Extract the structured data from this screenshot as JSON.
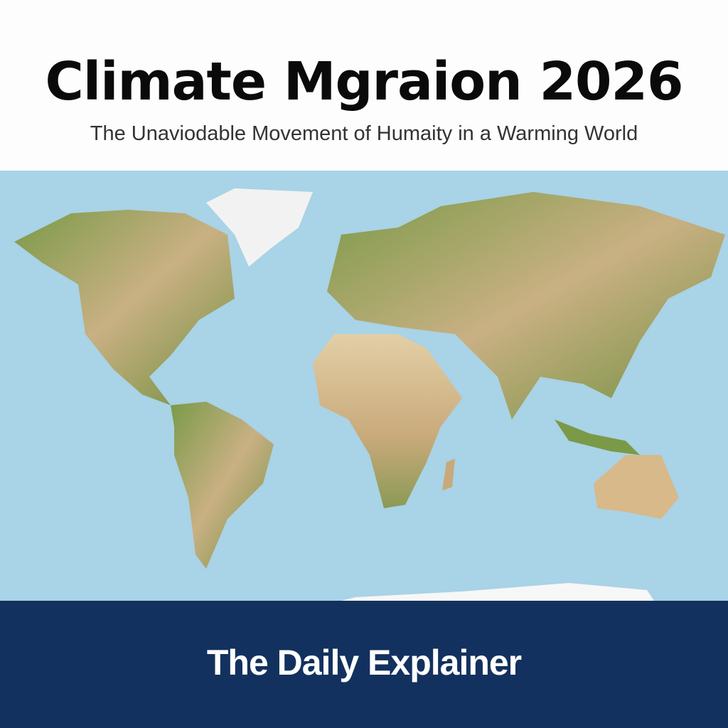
{
  "header": {
    "title": "Climate Mgraion 2026",
    "subtitle": "The Unaviodable Movement of Humaity in a Warming World"
  },
  "map": {
    "type": "world-map",
    "colors": {
      "ocean": "#a9d3e6",
      "land_dry": "#d9c29a",
      "land_green": "#6f8f3e",
      "ice": "#f4f4f4"
    }
  },
  "footer": {
    "brand": "The Daily Explainer",
    "background": "#13315e"
  }
}
